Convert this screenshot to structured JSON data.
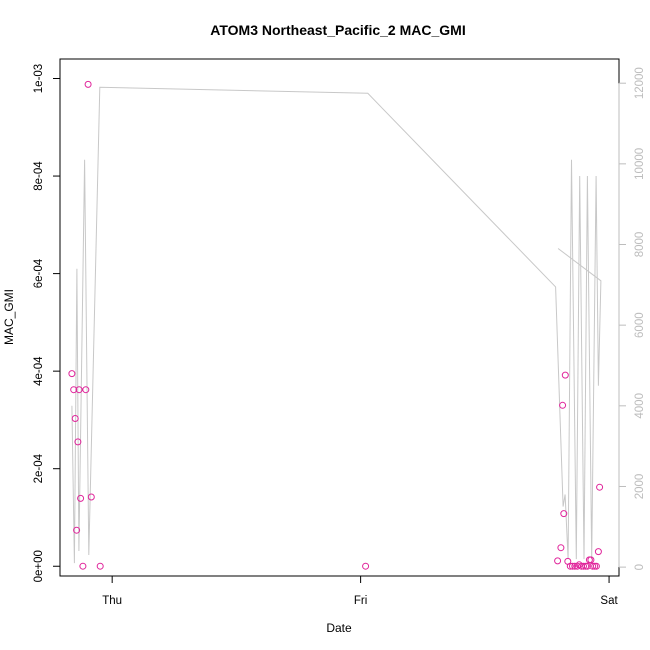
{
  "chart_data": {
    "type": "scatter",
    "title": "ATOM3 Northeast_Pacific_2 MAC_GMI",
    "xlabel": "Date",
    "ylabel": "MAC_GMI",
    "x_ticks": [
      {
        "label": "Thu",
        "t": 1.0
      },
      {
        "label": "Fri",
        "t": 2.0
      },
      {
        "label": "Sat",
        "t": 3.0
      }
    ],
    "xlim": [
      0.79,
      3.04
    ],
    "y_left": {
      "lim": [
        -2e-05,
        0.00104
      ],
      "ticks": [
        {
          "label": "0e+00",
          "v": 0
        },
        {
          "label": "2e-04",
          "v": 0.0002
        },
        {
          "label": "4e-04",
          "v": 0.0004
        },
        {
          "label": "6e-04",
          "v": 0.0006
        },
        {
          "label": "8e-04",
          "v": 0.0008
        },
        {
          "label": "1e-03",
          "v": 0.001
        }
      ]
    },
    "y_right": {
      "lim": [
        -220,
        12600
      ],
      "color": "#bdbdbd",
      "ticks": [
        {
          "label": "0",
          "v": 0
        },
        {
          "label": "2000",
          "v": 2000
        },
        {
          "label": "4000",
          "v": 4000
        },
        {
          "label": "6000",
          "v": 6000
        },
        {
          "label": "8000",
          "v": 8000
        },
        {
          "label": "10000",
          "v": 10000
        },
        {
          "label": "12000",
          "v": 12000
        }
      ]
    },
    "series": [
      {
        "kind": "points",
        "axis": "left",
        "color": "#e0259b",
        "points": [
          [
            0.838,
            0.000395
          ],
          [
            0.845,
            0.000362
          ],
          [
            0.851,
            0.000303
          ],
          [
            0.857,
            7.4e-05
          ],
          [
            0.862,
            0.000255
          ],
          [
            0.867,
            0.000362
          ],
          [
            0.873,
            0.000139
          ],
          [
            0.882,
            0.0
          ],
          [
            0.894,
            0.000362
          ],
          [
            0.903,
            0.000988
          ],
          [
            0.916,
            0.000142
          ],
          [
            0.952,
            0.0
          ],
          [
            2.02,
            0.0
          ],
          [
            2.793,
            1.1e-05
          ],
          [
            2.806,
            3.8e-05
          ],
          [
            2.813,
            0.00033
          ],
          [
            2.818,
            0.000108
          ],
          [
            2.824,
            0.000392
          ],
          [
            2.834,
            1e-05
          ],
          [
            2.844,
            0.0
          ],
          [
            2.853,
            0.0
          ],
          [
            2.862,
            0.0
          ],
          [
            2.872,
            0.0
          ],
          [
            2.88,
            3e-06
          ],
          [
            2.889,
            0.0
          ],
          [
            2.897,
            0.0
          ],
          [
            2.906,
            0.0
          ],
          [
            2.913,
            0.0
          ],
          [
            2.921,
            1.3e-05
          ],
          [
            2.927,
            1.3e-05
          ],
          [
            2.934,
            0.0
          ],
          [
            2.942,
            0.0
          ],
          [
            2.949,
            0.0
          ],
          [
            2.957,
            3e-05
          ],
          [
            2.962,
            0.000162
          ]
        ]
      },
      {
        "kind": "line",
        "axis": "right",
        "color": "#c8c8c8",
        "points": [
          [
            0.838,
            4000
          ],
          [
            0.848,
            100
          ],
          [
            0.858,
            7400
          ],
          [
            0.866,
            400
          ],
          [
            0.889,
            10100
          ],
          [
            0.906,
            300
          ],
          [
            0.95,
            11900
          ],
          [
            2.029,
            11750
          ],
          [
            2.785,
            6950
          ],
          [
            2.815,
            1500
          ],
          [
            2.823,
            1800
          ],
          [
            2.835,
            200
          ],
          [
            2.849,
            10100
          ],
          [
            2.868,
            200
          ],
          [
            2.882,
            9700
          ],
          [
            2.899,
            200
          ],
          [
            2.913,
            9700
          ],
          [
            2.93,
            200
          ],
          [
            2.948,
            9700
          ],
          [
            2.957,
            4500
          ],
          [
            2.967,
            7100
          ],
          [
            2.795,
            7900
          ]
        ]
      }
    ]
  }
}
